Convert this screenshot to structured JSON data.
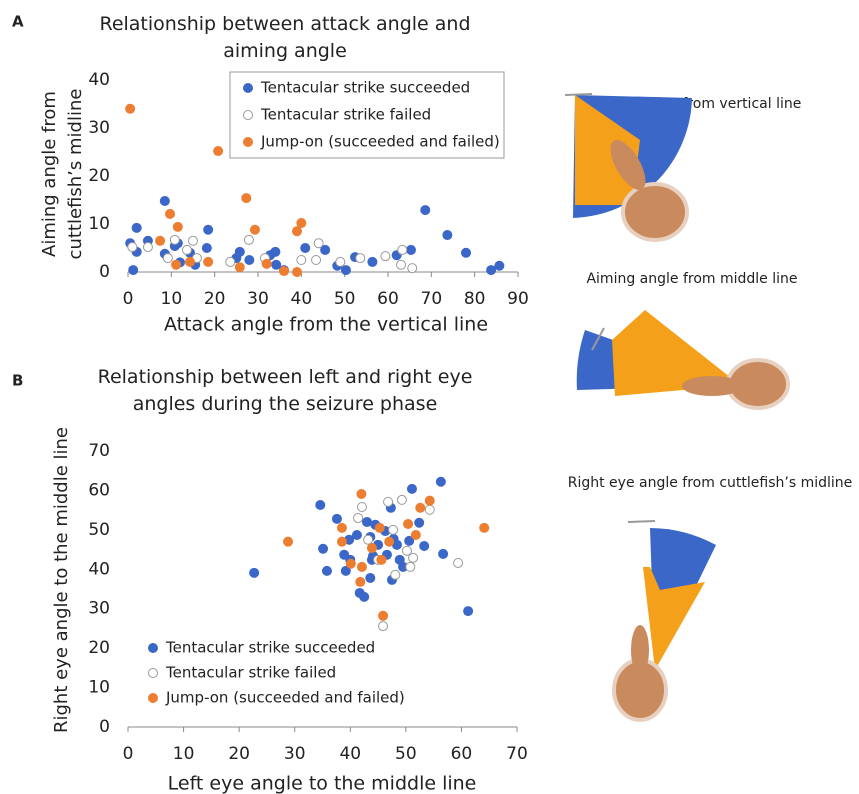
{
  "chart_data": [
    {
      "type": "scatter",
      "panel_label": "A",
      "title": "Relationship between attack angle and aiming angle",
      "xlabel": "Attack angle from the vertical line",
      "ylabel": "Aiming angle from cuttlefish’s midline",
      "xlim": [
        0,
        90
      ],
      "ylim": [
        0,
        40
      ],
      "xticks": [
        0,
        10,
        20,
        30,
        40,
        50,
        60,
        70,
        80,
        90
      ],
      "yticks": [
        0,
        10,
        20,
        30,
        40
      ],
      "legend": "upper right",
      "grid": false,
      "series": [
        {
          "name": "Tentacular strike succeeded",
          "color": "#3a67c8",
          "edgecolor": "#3a67c8",
          "x": [
            0.5,
            1.2,
            2,
            2,
            4.6,
            8.5,
            8.5,
            11.5,
            10.8,
            12,
            14.3,
            15.5,
            18.5,
            18.2,
            25,
            25.8,
            28,
            32.8,
            34,
            34.2,
            36,
            40.9,
            45.5,
            48.3,
            50.3,
            52.4,
            56.4,
            62,
            65.3,
            68.6,
            73.7,
            78,
            83.8,
            85.7
          ],
          "y": [
            6,
            0.4,
            9.2,
            4.2,
            6.5,
            14.8,
            3.8,
            6,
            5.4,
            2,
            4,
            1.5,
            8.8,
            5,
            2.9,
            4.2,
            2.5,
            3.5,
            4.2,
            1.5,
            0.4,
            5,
            4.6,
            1.3,
            0.4,
            3.1,
            2.1,
            3.5,
            4.6,
            12.9,
            7.7,
            4,
            0.4,
            1.3
          ]
        },
        {
          "name": "Tentacular strike failed",
          "color": "#ffffff",
          "edgecolor": "#999999",
          "x": [
            1,
            4.6,
            9.2,
            10.8,
            13.6,
            15,
            15.9,
            23.6,
            27.9,
            31.6,
            40,
            44,
            43.4,
            49,
            53.6,
            59.4,
            63.3,
            65.6,
            63
          ],
          "y": [
            5.2,
            5.2,
            2.9,
            6.7,
            4.6,
            6.5,
            2.9,
            2.1,
            6.7,
            2.9,
            2.5,
            6,
            2.5,
            2.1,
            2.9,
            3.3,
            4.6,
            0.8,
            1.5
          ]
        },
        {
          "name": "Jump-on (succeeded and failed)",
          "color": "#ed7d31",
          "edgecolor": "#ed7d31",
          "x": [
            0.5,
            7.4,
            9.7,
            11.5,
            11.1,
            14.3,
            18.5,
            20.8,
            25.8,
            27.3,
            29.3,
            32,
            36,
            39,
            39,
            40
          ],
          "y": [
            34,
            6.5,
            12.1,
            9.4,
            1.5,
            2.1,
            2.1,
            25.2,
            1,
            15.4,
            8.8,
            1.7,
            0.2,
            0,
            8.5,
            10.2
          ]
        }
      ]
    },
    {
      "type": "scatter",
      "panel_label": "B",
      "title": "Relationship between left and right eye angles during the seizure phase",
      "xlabel": "Left eye angle to the middle line",
      "ylabel": "Right eye angle to the middle line",
      "xlim": [
        0,
        70
      ],
      "ylim": [
        0,
        70
      ],
      "xticks": [
        0,
        10,
        20,
        30,
        40,
        50,
        60,
        70
      ],
      "yticks": [
        0,
        10,
        20,
        30,
        40,
        50,
        60,
        70
      ],
      "legend": "lower left",
      "grid": false,
      "series": [
        {
          "name": "Tentacular strike succeeded",
          "color": "#3a67c8",
          "edgecolor": "#3a67c8",
          "x": [
            22.7,
            34.6,
            35.1,
            35.8,
            37.6,
            39.8,
            40,
            38.9,
            39.2,
            41.7,
            42.5,
            43.6,
            44.1,
            43.6,
            44.5,
            45,
            46.3,
            46.6,
            47.5,
            47.3,
            48.4,
            48.9,
            49.5,
            50.6,
            51.1,
            52.4,
            53.3,
            56.3,
            56.7,
            61.2,
            41.2,
            43.9,
            43,
            47.8
          ],
          "y": [
            39.1,
            56.3,
            45.2,
            39.6,
            52.8,
            47.5,
            42.4,
            43.7,
            39.6,
            34,
            33,
            48.2,
            43.4,
            37.8,
            51.3,
            46.2,
            49.7,
            43.7,
            37.3,
            55.6,
            46.2,
            42.4,
            40.6,
            47.2,
            60.4,
            51.8,
            45.9,
            62.2,
            43.9,
            29.4,
            48.7,
            42.4,
            52,
            47.7
          ]
        },
        {
          "name": "Tentacular strike failed",
          "color": "#ffffff",
          "edgecolor": "#999999",
          "x": [
            41.4,
            42.1,
            43.2,
            45,
            45.9,
            48.1,
            49.3,
            50.2,
            50.8,
            51.3,
            54.3,
            59.4,
            47.7,
            46.8
          ],
          "y": [
            53,
            55.8,
            47.5,
            42.4,
            25.6,
            38.6,
            57.6,
            44.7,
            40.6,
            42.9,
            55.1,
            41.6,
            50,
            57.1
          ]
        },
        {
          "name": "Jump-on (succeeded and failed)",
          "color": "#ed7d31",
          "edgecolor": "#ed7d31",
          "x": [
            28.8,
            38.5,
            38.5,
            40.1,
            41.8,
            42.1,
            42,
            45.3,
            45.6,
            45.9,
            47,
            50.4,
            51.8,
            52.6,
            54.3,
            64.1,
            43.9
          ],
          "y": [
            47,
            50.5,
            47,
            41.4,
            36.8,
            40.6,
            59.1,
            50.5,
            42.4,
            28.2,
            47,
            51.5,
            48.7,
            55.6,
            57.4,
            50.5,
            45.4
          ]
        }
      ]
    }
  ],
  "diagram_captions": [
    "Attack angles from vertical line",
    "Aiming angle from middle line",
    "Right eye angle from cuttlefish’s midline"
  ]
}
